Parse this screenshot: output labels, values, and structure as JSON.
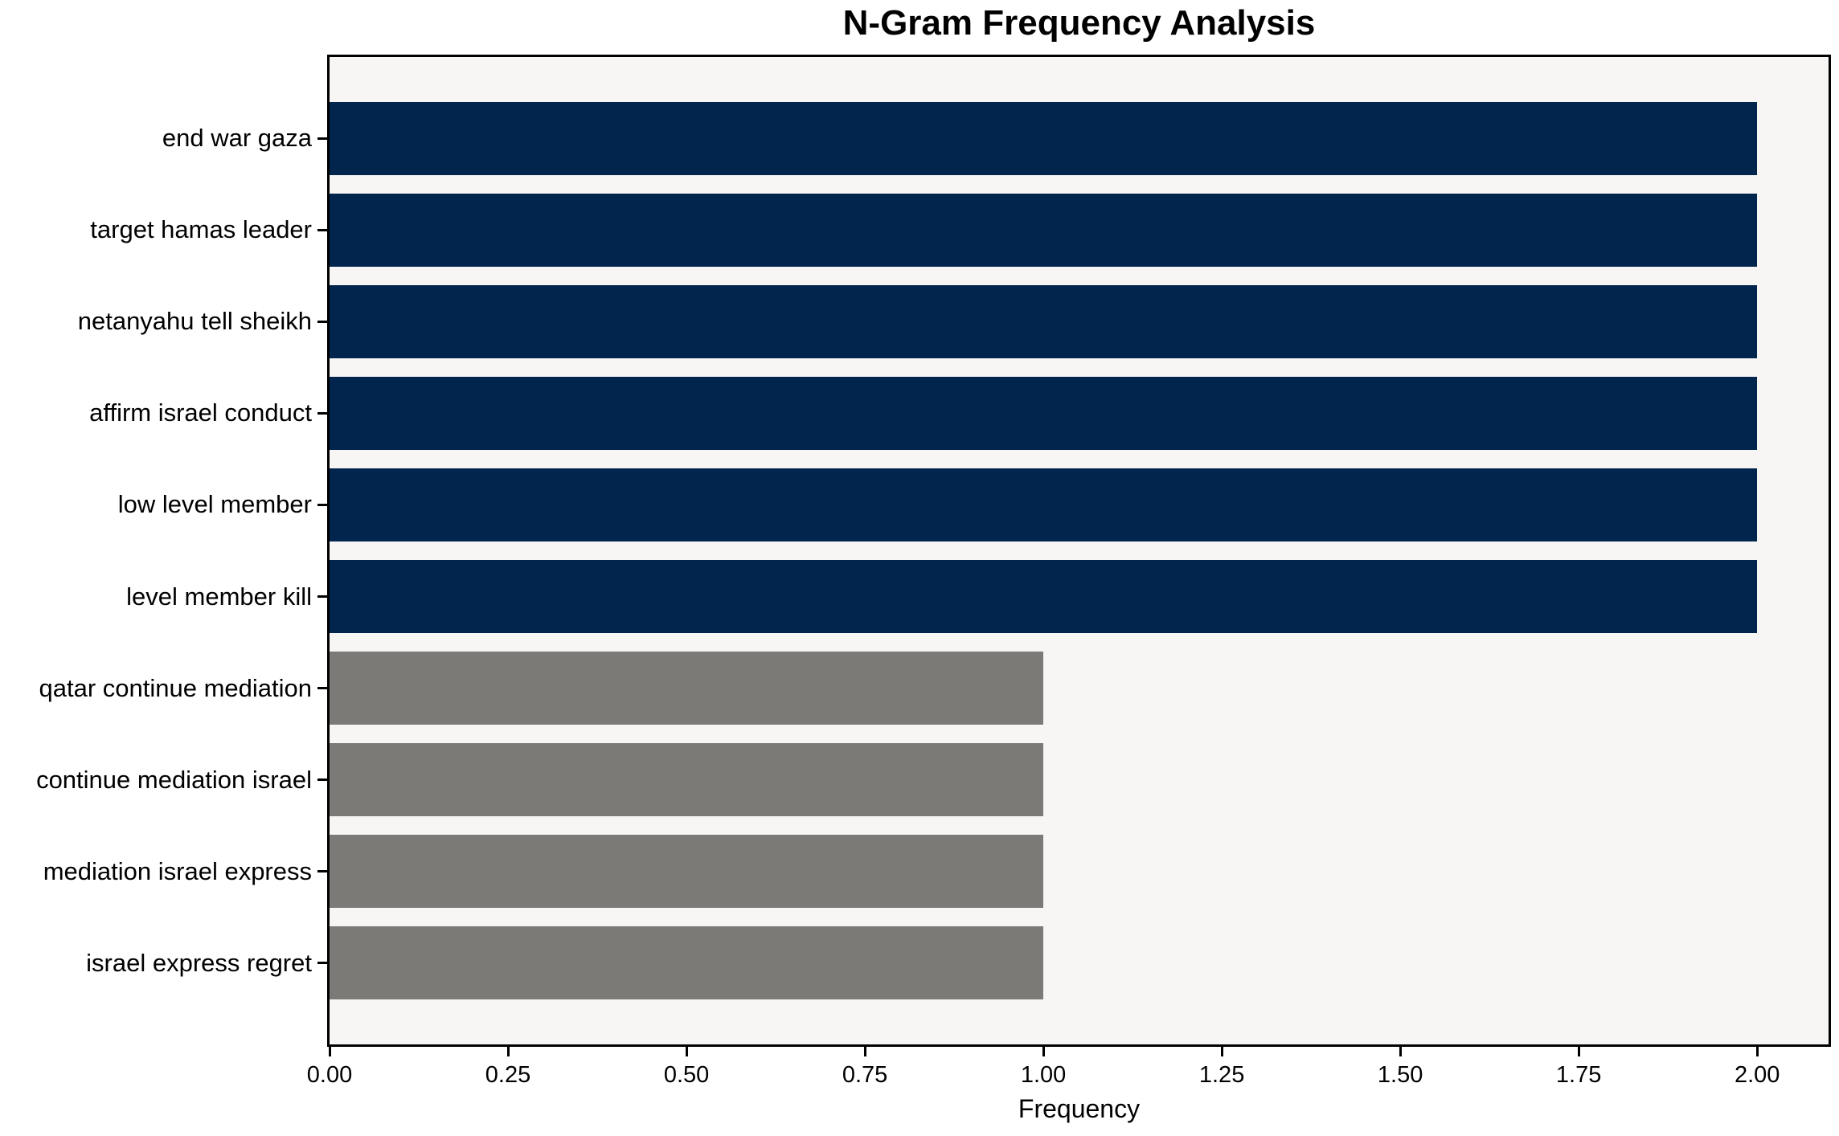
{
  "chart_data": {
    "type": "bar",
    "orientation": "horizontal",
    "title": "N-Gram Frequency Analysis",
    "xlabel": "Frequency",
    "ylabel": "",
    "categories": [
      "end war gaza",
      "target hamas leader",
      "netanyahu tell sheikh",
      "affirm israel conduct",
      "low level member",
      "level member kill",
      "qatar continue mediation",
      "continue mediation israel",
      "mediation israel express",
      "israel express regret"
    ],
    "values": [
      2,
      2,
      2,
      2,
      2,
      2,
      1,
      1,
      1,
      1
    ],
    "bar_colors": [
      "#02254e",
      "#02254e",
      "#02254e",
      "#02254e",
      "#02254e",
      "#02254e",
      "#7b7a77",
      "#7b7a77",
      "#7b7a77",
      "#7b7a77"
    ],
    "xlim": [
      0,
      2.1
    ],
    "xticks": [
      0,
      0.25,
      0.5,
      0.75,
      1.0,
      1.25,
      1.5,
      1.75,
      2.0
    ],
    "xtick_labels": [
      "0.00",
      "0.25",
      "0.50",
      "0.75",
      "1.00",
      "1.25",
      "1.50",
      "1.75",
      "2.00"
    ],
    "grid": false,
    "legend": null,
    "plot_background": "#f7f6f5",
    "frame_color": "#000000"
  }
}
